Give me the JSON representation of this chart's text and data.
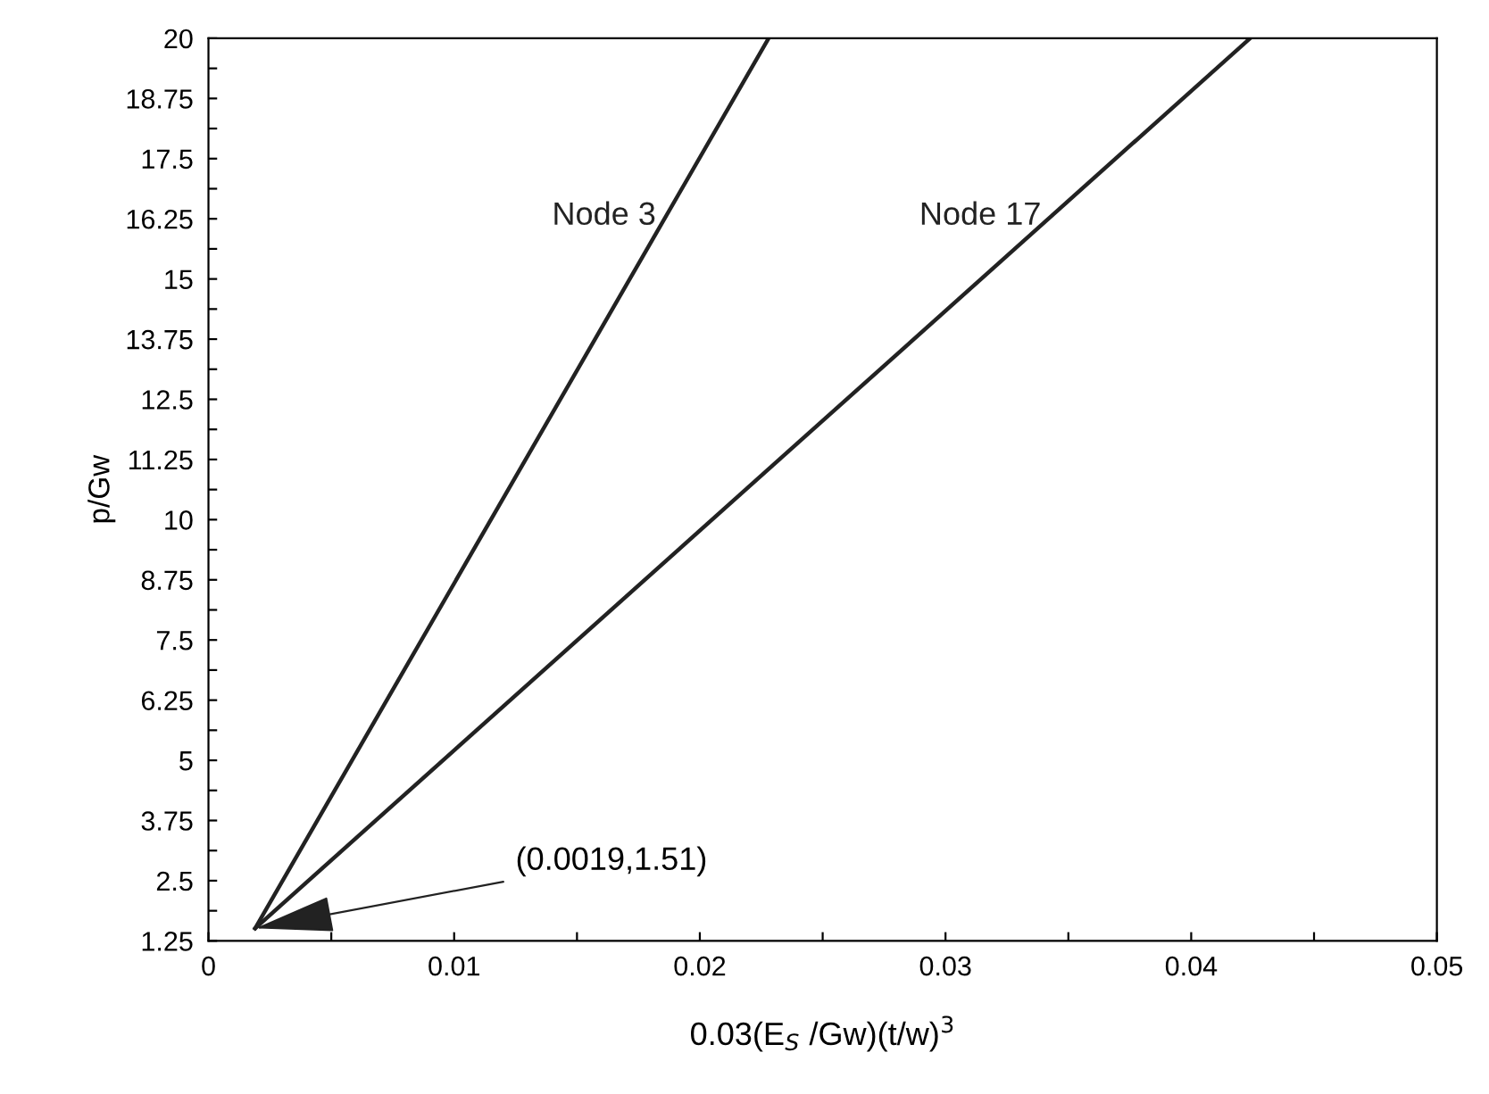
{
  "chart_data": {
    "type": "line",
    "xlabel": "0.03(E$_{S}$ /Gw)(t/w)$^{3}$",
    "ylabel": "p/Gw",
    "xlim": [
      0,
      0.05
    ],
    "ylim": [
      1.25,
      20
    ],
    "xticks": [
      0,
      {
        "value": 0.005,
        "label": null
      },
      0.01,
      {
        "value": 0.015,
        "label": null
      },
      0.02,
      {
        "value": 0.025,
        "label": null
      },
      0.03,
      {
        "value": 0.035,
        "label": null
      },
      0.04,
      {
        "value": 0.045,
        "label": null
      },
      0.05
    ],
    "yticks": [
      1.25,
      {
        "value": 1.875,
        "label": null
      },
      2.5,
      {
        "value": 3.125,
        "label": null
      },
      3.75,
      {
        "value": 4.375,
        "label": null
      },
      5,
      {
        "value": 5.625,
        "label": null
      },
      6.25,
      {
        "value": 6.875,
        "label": null
      },
      7.5,
      {
        "value": 8.125,
        "label": null
      },
      8.75,
      {
        "value": 9.375,
        "label": null
      },
      10,
      {
        "value": 10.625,
        "label": null
      },
      11.25,
      {
        "value": 11.875,
        "label": null
      },
      12.5,
      {
        "value": 13.125,
        "label": null
      },
      13.75,
      {
        "value": 14.375,
        "label": null
      },
      15,
      {
        "value": 15.625,
        "label": null
      },
      16.25,
      {
        "value": 16.875,
        "label": null
      },
      17.5,
      {
        "value": 18.125,
        "label": null
      },
      18.75,
      {
        "value": 19.375,
        "label": null
      },
      20
    ],
    "series": [
      {
        "name": "Node 3",
        "color": "#222222",
        "x": [
          0.0019,
          0.0228
        ],
        "values": [
          1.51,
          20
        ]
      },
      {
        "name": "Node 17",
        "color": "#222222",
        "x": [
          0.0019,
          0.0424
        ],
        "values": [
          1.51,
          20
        ]
      }
    ],
    "annotations": [
      {
        "text": "(0.0019,1.51)",
        "x": 0.0019,
        "y": 1.51
      }
    ],
    "grid": false,
    "legend": false,
    "line_style": "solid",
    "marker": "none"
  }
}
